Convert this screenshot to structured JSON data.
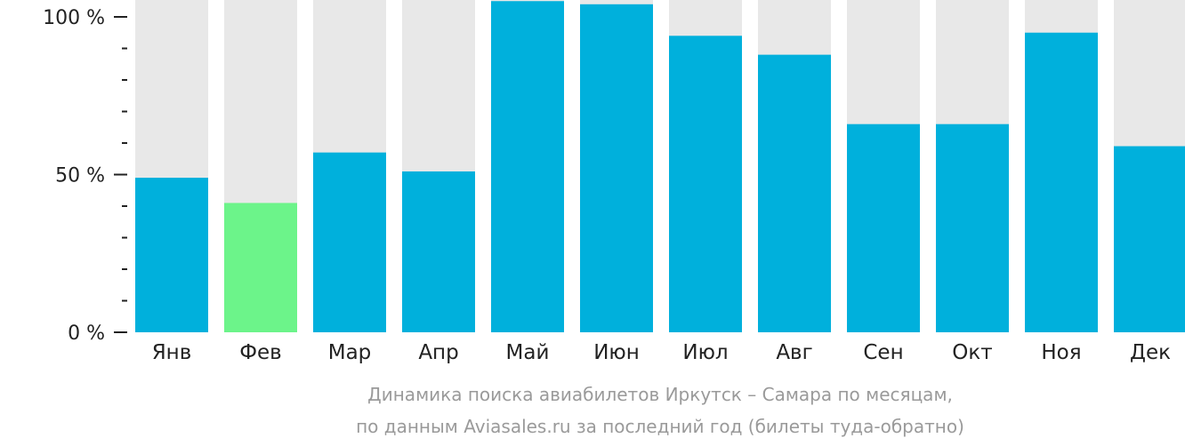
{
  "chart_data": {
    "type": "bar",
    "categories": [
      "Янв",
      "Фев",
      "Мар",
      "Апр",
      "Май",
      "Июн",
      "Июл",
      "Авг",
      "Сен",
      "Окт",
      "Ноя",
      "Дек"
    ],
    "values": [
      49,
      41,
      57,
      51,
      105,
      104,
      94,
      88,
      66,
      66,
      95,
      59
    ],
    "ylim": [
      0,
      100
    ],
    "yticks": [
      {
        "value": 100,
        "label": "100 %"
      },
      {
        "value": 50,
        "label": "50 %"
      },
      {
        "value": 0,
        "label": "0 %"
      }
    ],
    "minor_ticks": [
      10,
      20,
      30,
      40,
      60,
      70,
      80,
      90
    ],
    "highlight_index": 1,
    "caption": [
      "Динамика поиска авиабилетов Иркутск – Самара по месяцам,",
      "по данным Aviasales.ru за последний год (билеты туда-обратно)"
    ],
    "grid": false,
    "legend": "none"
  },
  "colors": {
    "bar": "#00b0dc",
    "highlight": "#6cf48a",
    "background_bar": "#e8e8e8",
    "axis": "#222222",
    "caption": "#9a9a9a"
  }
}
